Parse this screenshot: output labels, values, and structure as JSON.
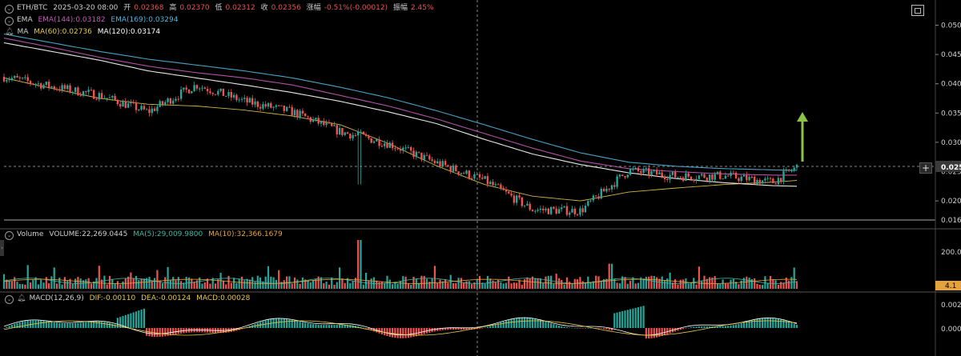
{
  "main_header": {
    "symbol": "ETH/BTC",
    "datetime": "2025-03-20 08:00",
    "open_label": "开",
    "open": "0.02368",
    "high_label": "高",
    "high": "0.02370",
    "low_label": "低",
    "low": "0.02312",
    "close_label": "收",
    "close": "0.02356",
    "change_label": "涨幅",
    "change": "-0.51%(-0.00012)",
    "amplitude_label": "振幅",
    "amplitude": "2.45%"
  },
  "ema_header": {
    "name": "EMA",
    "ema144": "EMA(144):0.03182",
    "ema169": "EMA(169):0.03294"
  },
  "ma_header": {
    "name": "MA",
    "ma60": "MA(60):0.02736",
    "ma120": "MA(120):0.03174"
  },
  "volume_header": {
    "name": "Volume",
    "volume": "VOLUME:22,269.0445",
    "ma5": "MA(5):29,009.9800",
    "ma10": "MA(10):32,366.1679"
  },
  "macd_header": {
    "name": "MACD(12,26,9)",
    "dif": "DIF:-0.00110",
    "dea": "DEA:-0.00124",
    "macd": "MACD:0.00028"
  },
  "price_axis": {
    "ticks": [
      "0.050",
      "0.045",
      "0.040",
      "0.035",
      "0.030",
      "0.025",
      "0.020"
    ],
    "current": "0.025",
    "bottom_partial": "0.016"
  },
  "volume_axis": {
    "ticks": [
      "200.0"
    ],
    "current": "4.1"
  },
  "macd_axis": {
    "ticks": [
      "0.002",
      "0.000"
    ]
  },
  "colors": {
    "up": "#26a69a",
    "down": "#ef5350",
    "ema144": "#c45ab8",
    "ema169": "#4fb3d8",
    "ma60": "#e6c84a",
    "ma120": "#ffffff",
    "arrow": "#8bc34a"
  },
  "icons": {
    "toggle": "chevron-down-icon",
    "alert": "bell-icon",
    "fullscreen": "fullscreen-icon",
    "add": "plus-icon",
    "signal": "up-arrow-icon"
  },
  "chart_data": [
    {
      "type": "line",
      "title": "ETH/BTC",
      "note_candles": "candlestick series approximated by close path",
      "x": [
        0,
        60,
        120,
        180,
        240,
        300,
        360,
        420,
        480,
        540,
        600,
        660,
        720,
        780,
        840,
        900,
        960,
        990
      ],
      "close": [
        0.0412,
        0.0395,
        0.038,
        0.0352,
        0.0398,
        0.037,
        0.0352,
        0.0318,
        0.0298,
        0.0265,
        0.0235,
        0.0185,
        0.0183,
        0.0252,
        0.0242,
        0.0243,
        0.0232,
        0.0258
      ],
      "series": [
        {
          "name": "EMA(144)",
          "values": [
            0.0478,
            0.0462,
            0.0445,
            0.043,
            0.0419,
            0.041,
            0.0398,
            0.038,
            0.0362,
            0.034,
            0.0315,
            0.029,
            0.0268,
            0.0255,
            0.025,
            0.0246,
            0.0244,
            0.0244
          ]
        },
        {
          "name": "EMA(169)",
          "values": [
            0.0485,
            0.047,
            0.0455,
            0.0442,
            0.0432,
            0.0422,
            0.041,
            0.0394,
            0.0376,
            0.0354,
            0.033,
            0.0305,
            0.0282,
            0.0266,
            0.0259,
            0.0255,
            0.0253,
            0.0252
          ]
        },
        {
          "name": "MA(60)",
          "values": [
            0.041,
            0.0392,
            0.0375,
            0.0365,
            0.0362,
            0.0355,
            0.0345,
            0.033,
            0.0298,
            0.026,
            0.0228,
            0.0208,
            0.02,
            0.0215,
            0.0222,
            0.0228,
            0.0232,
            0.0235
          ]
        },
        {
          "name": "MA(120)",
          "values": [
            0.047,
            0.0455,
            0.044,
            0.0422,
            0.041,
            0.0398,
            0.0385,
            0.037,
            0.0352,
            0.0332,
            0.0305,
            0.028,
            0.0262,
            0.0248,
            0.0238,
            0.0231,
            0.0226,
            0.0225
          ]
        }
      ],
      "ylim": [
        0.016,
        0.053
      ]
    },
    {
      "type": "bar",
      "title": "Volume",
      "note": "illustrative volume profile; spike near x=445",
      "x_spike": 445,
      "ylim": [
        0,
        270
      ]
    },
    {
      "type": "bar",
      "title": "MACD(12,26,9)",
      "note": "histogram with DIF/DEA lines",
      "ylim": [
        -0.0035,
        0.0032
      ]
    }
  ]
}
